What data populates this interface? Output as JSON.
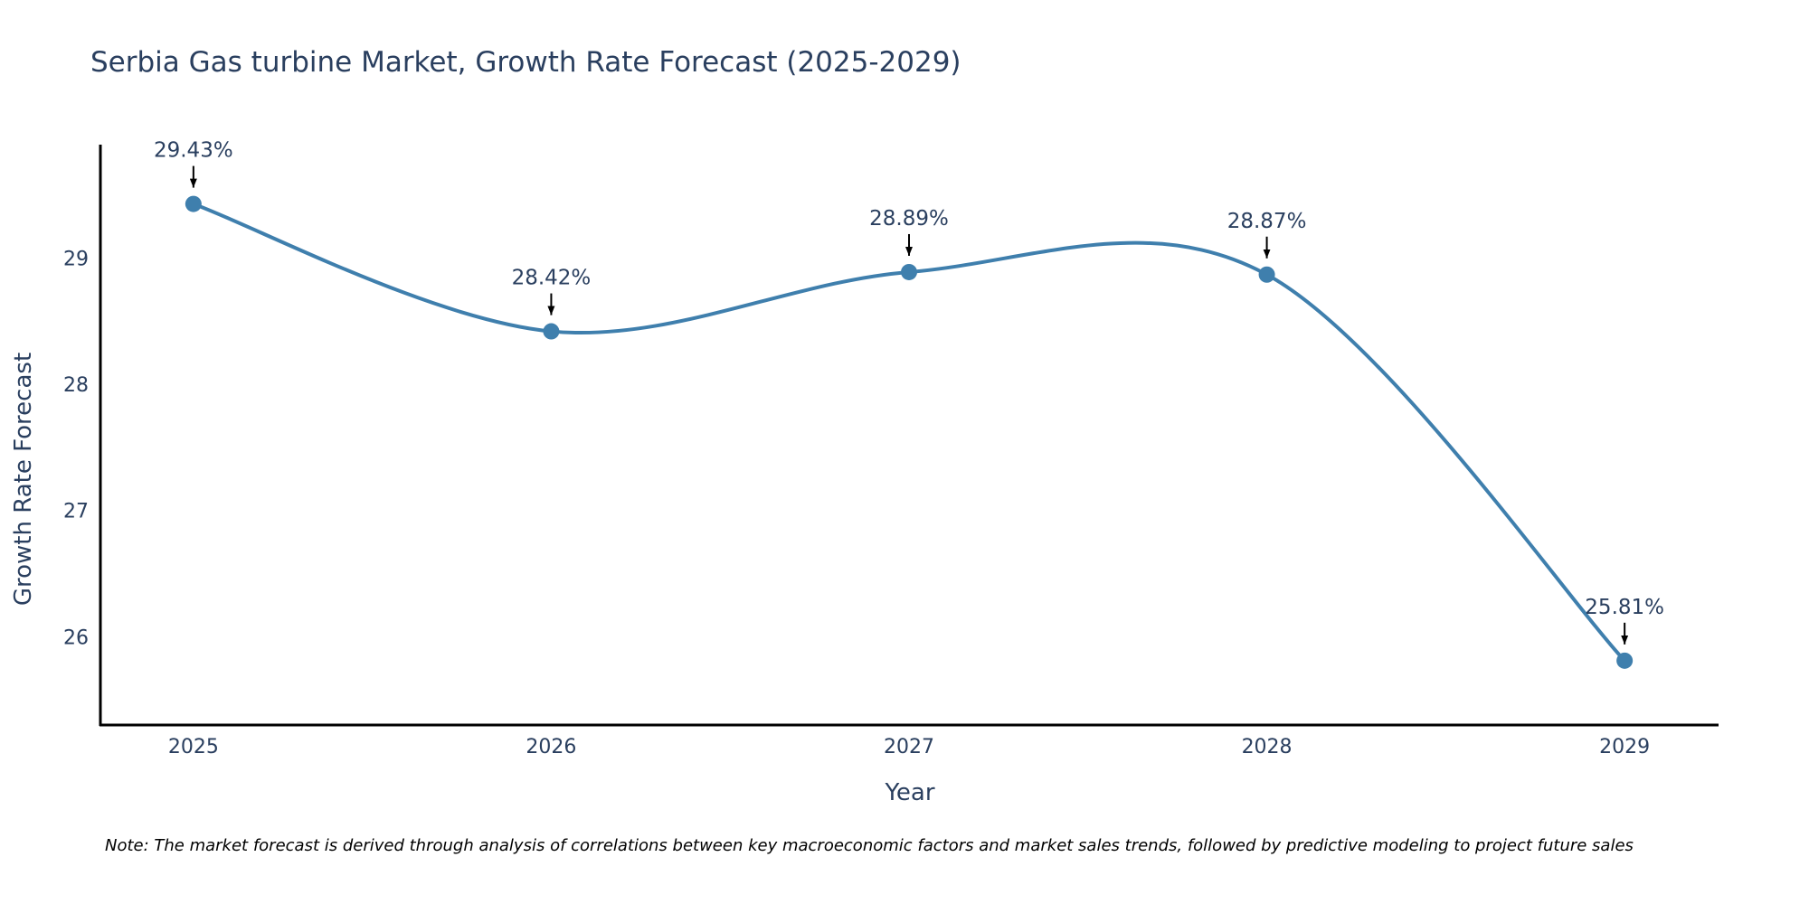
{
  "colors": {
    "line": "#3f7fad",
    "marker": "#3f7fad",
    "axis": "#000000",
    "text": "#2a3f5f",
    "arrow": "#000000"
  },
  "chart_data": {
    "type": "line",
    "title": "Serbia Gas turbine Market, Growth Rate Forecast (2025-2029)",
    "xlabel": "Year",
    "ylabel": "Growth Rate Forecast",
    "x": [
      2025,
      2026,
      2027,
      2028,
      2029
    ],
    "x_tick_labels": [
      "2025",
      "2026",
      "2027",
      "2028",
      "2029"
    ],
    "y_ticks": [
      26,
      27,
      28,
      29
    ],
    "y_tick_labels": [
      "26",
      "27",
      "28",
      "29"
    ],
    "ylim": [
      25.3,
      29.9
    ],
    "xlim": [
      2024.74,
      2029.26
    ],
    "line_shape": "spline",
    "grid": false,
    "series": [
      {
        "name": "Growth Rate Forecast",
        "values": [
          29.43,
          28.42,
          28.89,
          28.87,
          25.81
        ],
        "labels": [
          "29.43%",
          "28.42%",
          "28.89%",
          "28.87%",
          "25.81%"
        ]
      }
    ],
    "note": "Note: The market forecast is derived through analysis of correlations between key macroeconomic factors and market sales trends, followed by predictive modeling to project future sales"
  }
}
